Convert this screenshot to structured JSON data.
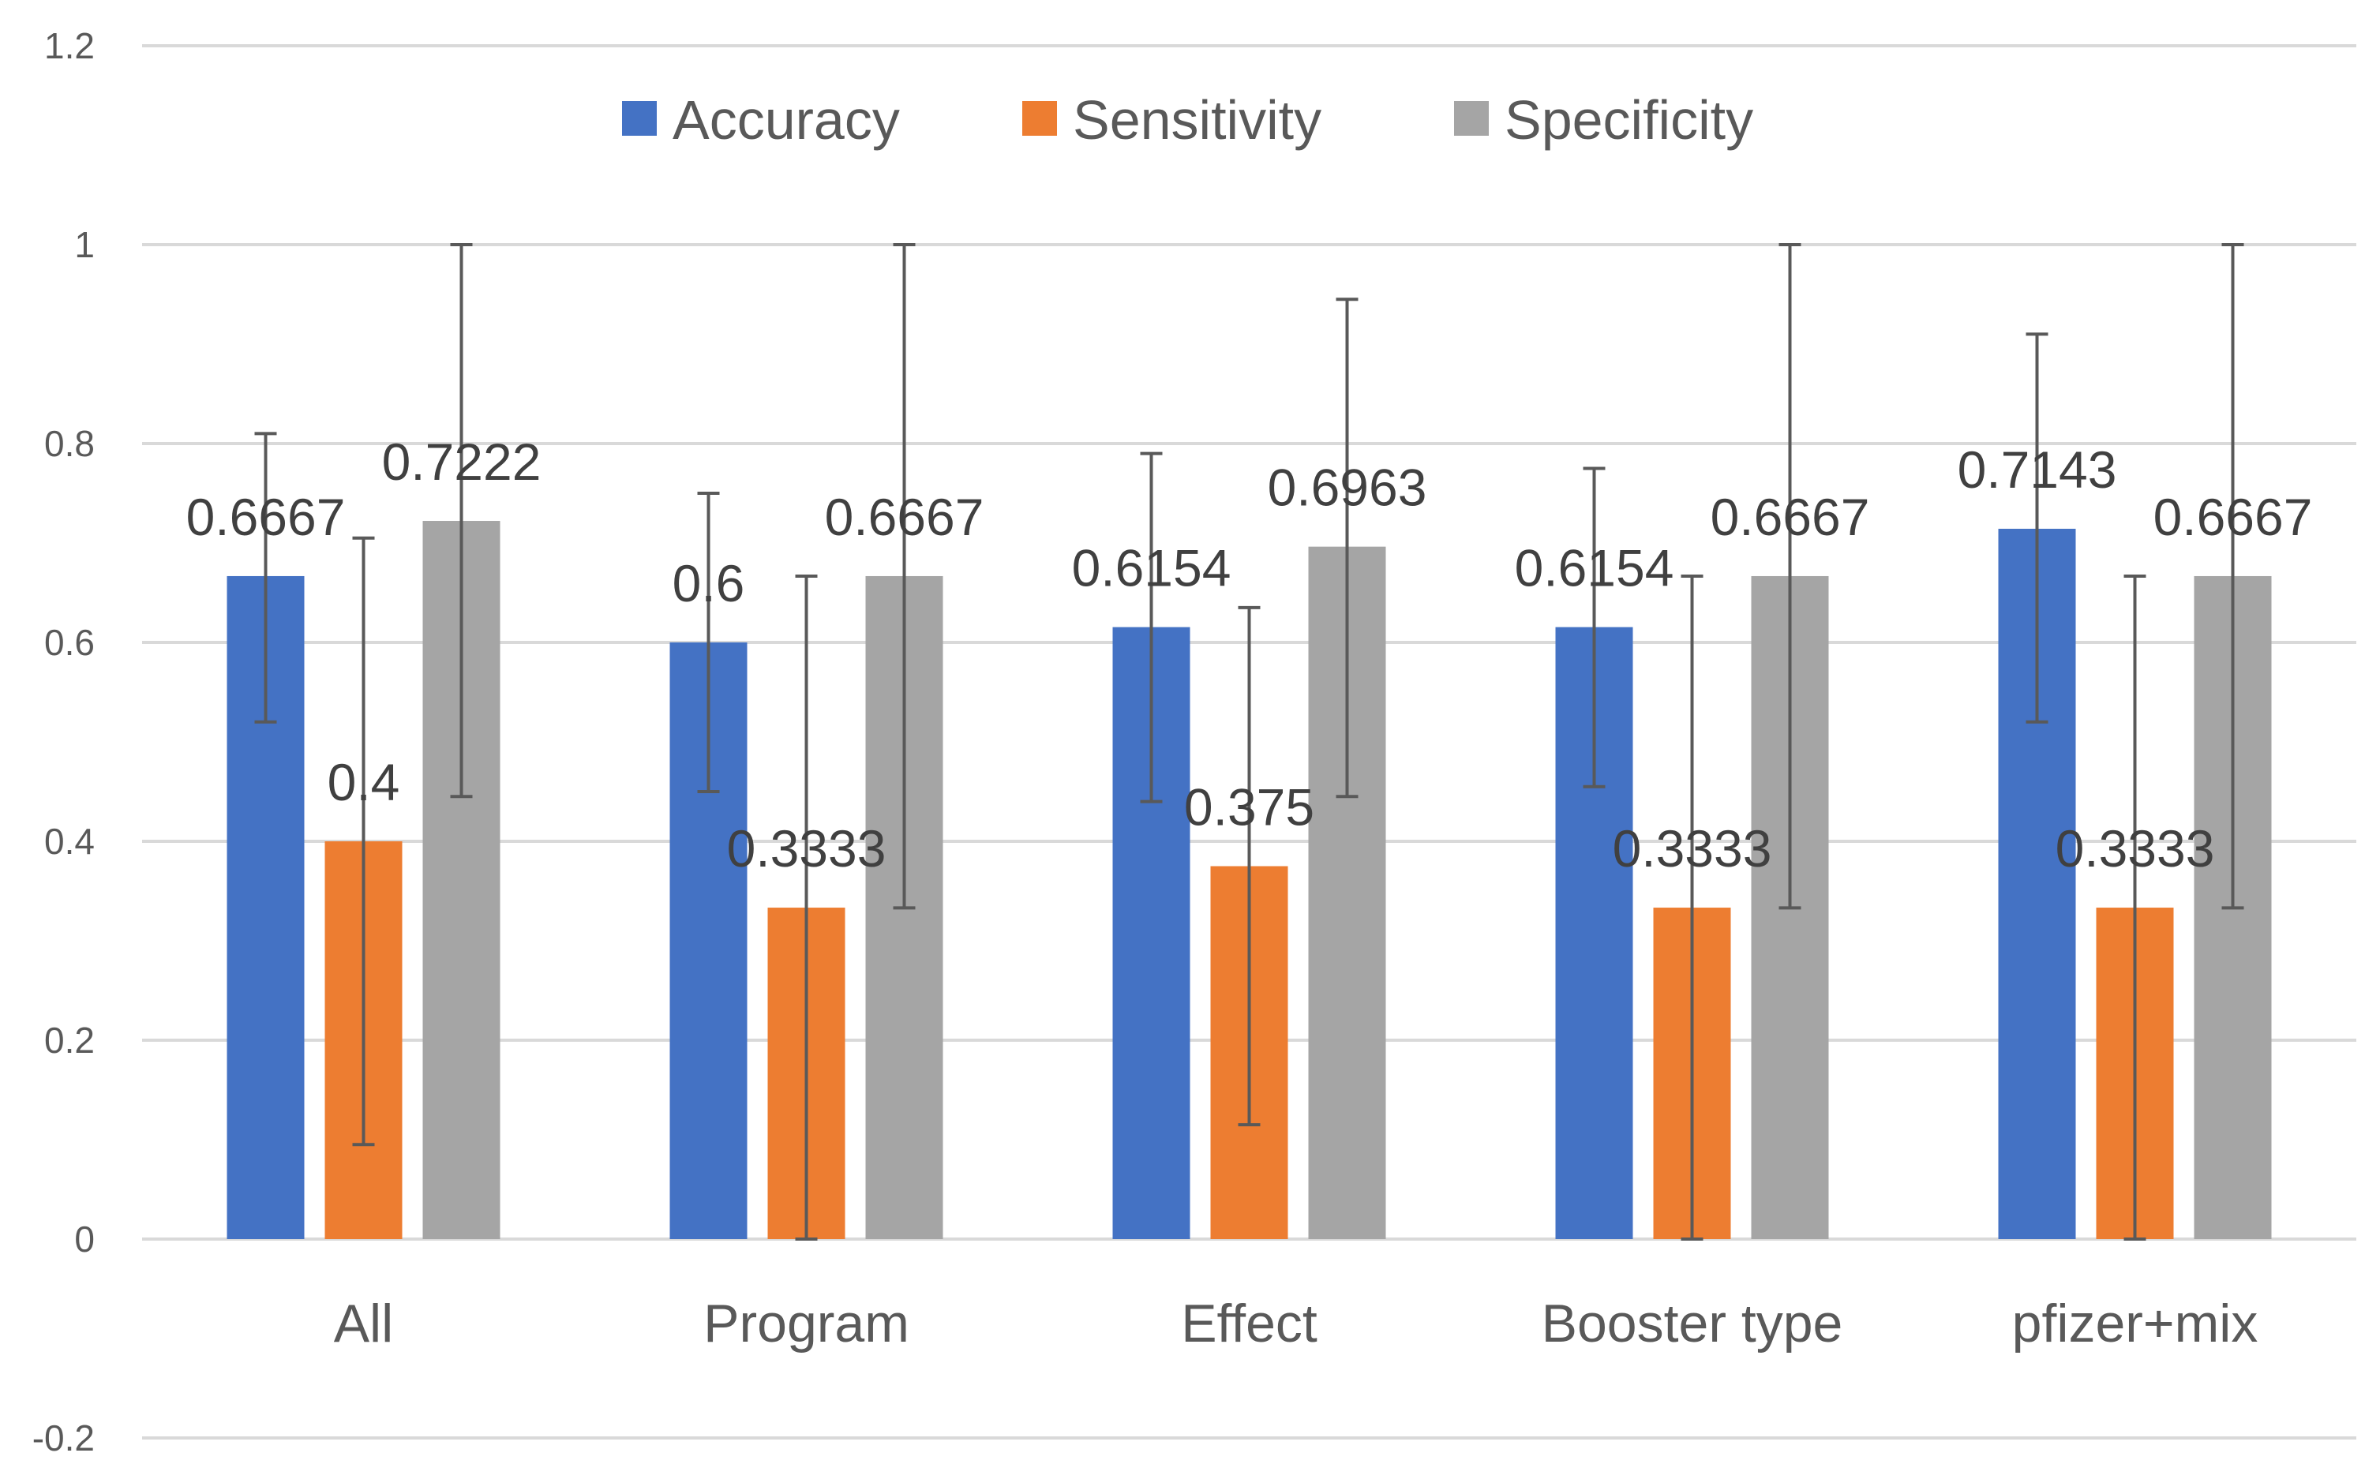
{
  "chart_data": {
    "type": "bar",
    "title": "",
    "xlabel": "",
    "ylabel": "",
    "ylim": [
      -0.2,
      1.2
    ],
    "yticks": [
      -0.2,
      0,
      0.2,
      0.4,
      0.6,
      0.8,
      1,
      1.2
    ],
    "ytick_labels": [
      "-0.2",
      "0",
      "0.2",
      "0.4",
      "0.6",
      "0.8",
      "1",
      "1.2"
    ],
    "grid": true,
    "legend_position": "top-center",
    "categories": [
      "All",
      "Program",
      "Effect",
      "Booster type",
      "pfizer+mix"
    ],
    "series": [
      {
        "name": "Accuracy",
        "color": "#4472c4",
        "values": [
          0.6667,
          0.6,
          0.6154,
          0.6154,
          0.7143
        ],
        "labels": [
          "0.6667",
          "0.6",
          "0.6154",
          "0.6154",
          "0.7143"
        ],
        "error_low": [
          0.52,
          0.45,
          0.44,
          0.455,
          0.52
        ],
        "error_high": [
          0.81,
          0.75,
          0.79,
          0.775,
          0.91
        ]
      },
      {
        "name": "Sensitivity",
        "color": "#ed7d31",
        "values": [
          0.4,
          0.3333,
          0.375,
          0.3333,
          0.3333
        ],
        "labels": [
          "0.4",
          "0.3333",
          "0.375",
          "0.3333",
          "0.3333"
        ],
        "error_low": [
          0.095,
          0.0,
          0.115,
          0.0,
          0.0
        ],
        "error_high": [
          0.705,
          0.6667,
          0.635,
          0.6667,
          0.6667
        ]
      },
      {
        "name": "Specificity",
        "color": "#a5a5a5",
        "values": [
          0.7222,
          0.6667,
          0.6963,
          0.6667,
          0.6667
        ],
        "labels": [
          "0.7222",
          "0.6667",
          "0.6963",
          "0.6667",
          "0.6667"
        ],
        "error_low": [
          0.445,
          0.333,
          0.445,
          0.333,
          0.333
        ],
        "error_high": [
          1.0,
          1.0,
          0.945,
          1.0,
          1.0
        ]
      }
    ]
  }
}
